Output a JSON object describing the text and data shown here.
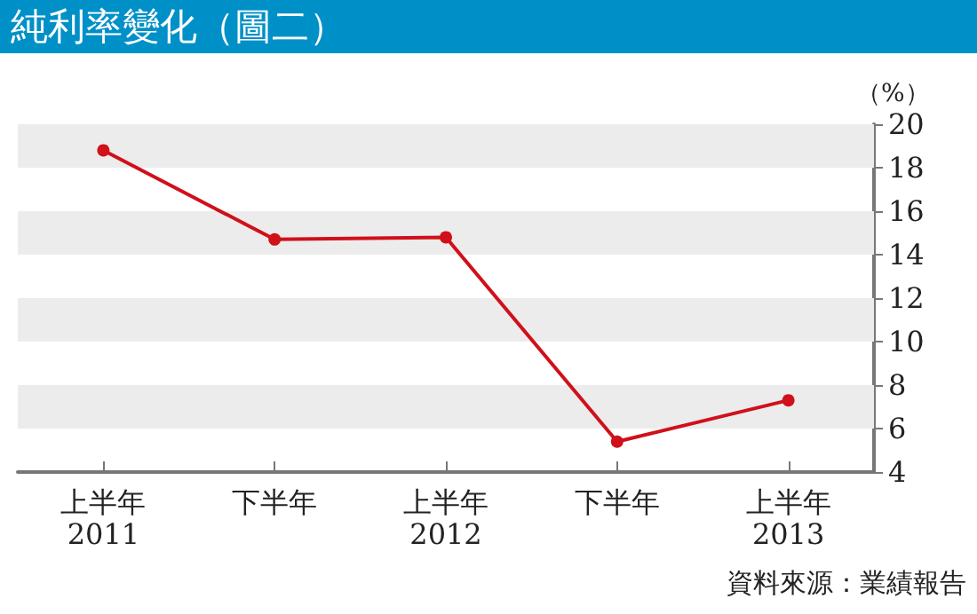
{
  "chart_data": {
    "type": "line",
    "title": "純利率變化（圖二）",
    "ylabel": "（%）",
    "categories": [
      "上半年\n2011",
      "下半年",
      "上半年\n2012",
      "下半年",
      "上半年\n2013"
    ],
    "series": [
      {
        "color": "#d0101a",
        "values": [
          18.8,
          14.7,
          14.8,
          5.4,
          7.3
        ]
      }
    ],
    "ylim": [
      4,
      20
    ],
    "yticks": [
      4,
      6,
      8,
      10,
      12,
      14,
      16,
      18,
      20
    ],
    "bands": [
      {
        "axis": "y",
        "from": 18,
        "to": 20,
        "color": "#ececec"
      },
      {
        "axis": "y",
        "from": 14,
        "to": 16,
        "color": "#ececec"
      },
      {
        "axis": "y",
        "from": 10,
        "to": 12,
        "color": "#ececec"
      },
      {
        "axis": "y",
        "from": 6,
        "to": 8,
        "color": "#ececec"
      }
    ],
    "marker": "circle",
    "line_style": "solid",
    "grid": false,
    "annotations": [
      "資料來源：業績報告"
    ]
  }
}
